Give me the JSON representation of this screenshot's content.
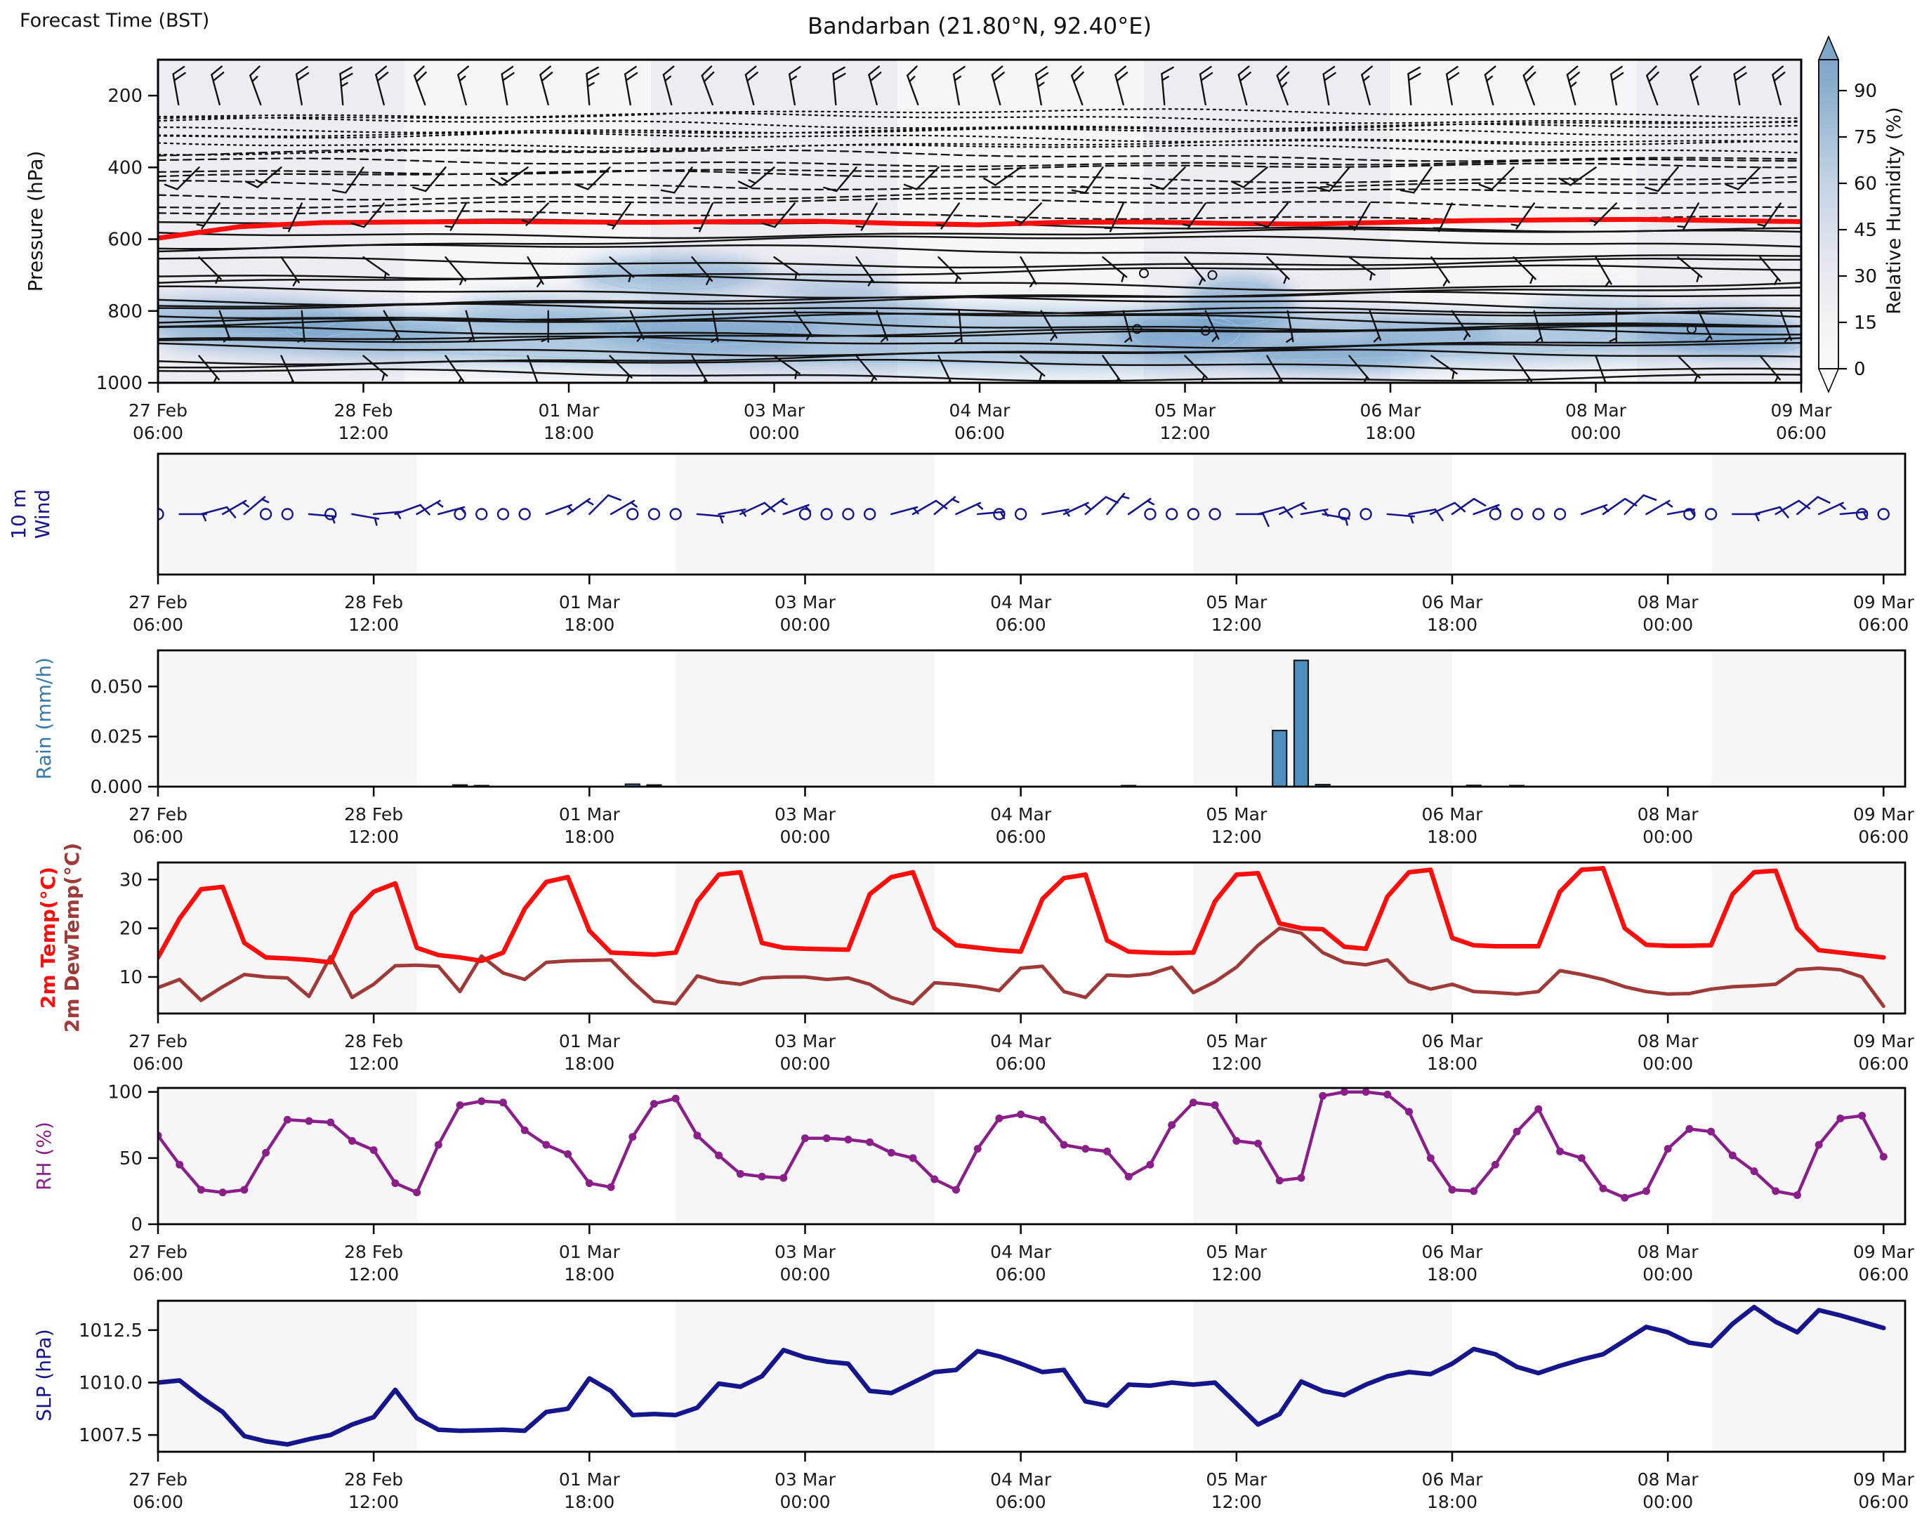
{
  "header": {
    "corner_label": "Forecast Time (BST)",
    "title": "Bandarban (21.80°N, 92.40°E)"
  },
  "x_axis": {
    "tick_hours": [
      0,
      30,
      60,
      90,
      120,
      150,
      180,
      210,
      240
    ],
    "tick_labels": [
      [
        "27 Feb",
        "06:00"
      ],
      [
        "28 Feb",
        "12:00"
      ],
      [
        "01 Mar",
        "18:00"
      ],
      [
        "03 Mar",
        "00:00"
      ],
      [
        "04 Mar",
        "06:00"
      ],
      [
        "05 Mar",
        "12:00"
      ],
      [
        "06 Mar",
        "18:00"
      ],
      [
        "08 Mar",
        "00:00"
      ],
      [
        "09 Mar",
        "06:00"
      ]
    ],
    "hours_total": 240
  },
  "colors": {
    "temp": "#fb0f0c",
    "dew": "#9e3a38",
    "rh": "#8a1f8a",
    "slp": "#16168c",
    "wind10m": "#16168c",
    "rain_bar": "#4e8fc0",
    "rain_bar_edge": "#1a1a1a",
    "rain_label": "#3779ab",
    "contour": "#151515",
    "freezing_line": "#fb0f0c",
    "day_band_gray": "#f6f6f6",
    "pressure_bg": "#edecf3",
    "humidity_blue": "#6094c3"
  },
  "chart_data": [
    {
      "id": "pressure_time_section",
      "type": "contour+barbs",
      "ylabel": "Pressure (hPa)",
      "yticks": [
        200,
        400,
        600,
        800,
        1000
      ],
      "ylim": [
        100,
        1000
      ],
      "colorbar": {
        "label": "Relative Humidity (%)",
        "ticks": [
          0,
          15,
          30,
          45,
          60,
          75,
          90
        ],
        "range": [
          0,
          100
        ]
      },
      "freezing_level_points": {
        "step_h": 12,
        "hpa": [
          597,
          565,
          554,
          552,
          551,
          552,
          553,
          551,
          550,
          556,
          560,
          553,
          552,
          556,
          558,
          553,
          548,
          546,
          545,
          548,
          551
        ]
      },
      "dashed_contours_hpa": [
        250,
        264,
        278,
        292,
        306,
        320,
        334,
        350,
        366,
        384,
        404,
        426,
        450,
        476,
        504,
        534
      ],
      "solid_contours_hpa": [
        562,
        584,
        608,
        634,
        662,
        692,
        722,
        748,
        766,
        782,
        796,
        810,
        824,
        838,
        852,
        868,
        886,
        906,
        928,
        952,
        978
      ],
      "humidity_blobs": [
        [
          12,
          820,
          18,
          60,
          0.5
        ],
        [
          30,
          850,
          14,
          50,
          0.45
        ],
        [
          55,
          800,
          12,
          45,
          0.4
        ],
        [
          75,
          700,
          14,
          55,
          0.55
        ],
        [
          80,
          850,
          16,
          60,
          0.5
        ],
        [
          98,
          730,
          10,
          40,
          0.35
        ],
        [
          103,
          800,
          12,
          45,
          0.4
        ],
        [
          120,
          880,
          120,
          85,
          0.45
        ],
        [
          150,
          860,
          10,
          70,
          0.5
        ],
        [
          158,
          780,
          8,
          80,
          0.55
        ],
        [
          172,
          930,
          14,
          40,
          0.5
        ],
        [
          186,
          860,
          10,
          40,
          0.35
        ],
        [
          210,
          800,
          10,
          50,
          0.3
        ],
        [
          228,
          850,
          12,
          60,
          0.5
        ],
        [
          232,
          890,
          10,
          40,
          0.5
        ]
      ],
      "calm_circles": [
        [
          144,
          695
        ],
        [
          154,
          700
        ],
        [
          143,
          850
        ],
        [
          153,
          855
        ],
        [
          224,
          850
        ]
      ],
      "barb_rows": [
        {
          "hpa": 225,
          "start_h": 3,
          "step_h": 6,
          "speeds": [
            20,
            20,
            15,
            20,
            25,
            20,
            20,
            15,
            20,
            20,
            25,
            20,
            15,
            20,
            20,
            15,
            20,
            20,
            15,
            15,
            20,
            25,
            20,
            20,
            15,
            20,
            20,
            25,
            20,
            15,
            20,
            20,
            15,
            20,
            25,
            20,
            20,
            15,
            20,
            20
          ],
          "dirs": [
            350,
            345,
            340,
            350,
            355,
            345,
            340,
            345,
            350,
            345,
            355,
            350,
            345,
            340,
            345,
            350,
            355,
            345,
            340,
            350,
            345,
            350,
            340,
            345,
            355,
            350,
            345,
            340,
            350,
            345,
            355,
            350,
            345,
            340,
            345,
            350,
            340,
            345,
            350,
            345
          ]
        },
        {
          "hpa": 400,
          "start_h": 6,
          "step_h": 12,
          "speeds": [
            10,
            15,
            10,
            10,
            15,
            10,
            10,
            15,
            10,
            10,
            10,
            15,
            10,
            10,
            15,
            10,
            10,
            15,
            10,
            10
          ],
          "dirs": [
            225,
            230,
            215,
            220,
            235,
            225,
            215,
            230,
            220,
            225,
            235,
            215,
            225,
            230,
            220,
            215,
            225,
            235,
            220,
            225
          ]
        },
        {
          "hpa": 500,
          "start_h": 9,
          "step_h": 12,
          "speeds": [
            7,
            5,
            8,
            5,
            7,
            5,
            5,
            8,
            5,
            7,
            5,
            5,
            7,
            8,
            5,
            5,
            7,
            5,
            5,
            7
          ],
          "dirs": [
            215,
            205,
            220,
            210,
            225,
            215,
            205,
            220,
            210,
            215,
            225,
            205,
            215,
            220,
            210,
            205,
            215,
            225,
            210,
            215
          ]
        },
        {
          "hpa": 650,
          "start_h": 6,
          "step_h": 12,
          "speeds": [
            5,
            6,
            5,
            7,
            5,
            5,
            6,
            5,
            5,
            7,
            5,
            6,
            5,
            5,
            6,
            5,
            7,
            5,
            6,
            5
          ],
          "dirs": [
            135,
            145,
            125,
            140,
            150,
            130,
            140,
            125,
            145,
            135,
            150,
            130,
            140,
            135,
            125,
            145,
            135,
            150,
            130,
            140
          ]
        },
        {
          "hpa": 800,
          "start_h": 9,
          "step_h": 12,
          "speeds": [
            5,
            4,
            5,
            5,
            4,
            5,
            5,
            4,
            5,
            5,
            4,
            5,
            5,
            4,
            5,
            5,
            4,
            5,
            4,
            5
          ],
          "dirs": [
            160,
            175,
            150,
            165,
            180,
            155,
            170,
            145,
            160,
            175,
            150,
            165,
            155,
            170,
            160,
            145,
            165,
            180,
            155,
            160
          ]
        },
        {
          "hpa": 925,
          "start_h": 6,
          "step_h": 12,
          "speeds": [
            6,
            5,
            7,
            5,
            6,
            5,
            7,
            6,
            5,
            7,
            5,
            6,
            7,
            5,
            6,
            5,
            7,
            6,
            5,
            6
          ],
          "dirs": [
            140,
            155,
            130,
            145,
            160,
            135,
            150,
            125,
            140,
            155,
            130,
            145,
            135,
            150,
            140,
            125,
            145,
            160,
            135,
            140
          ]
        }
      ]
    },
    {
      "id": "wind_10m",
      "type": "barbs",
      "ylabel_lines": [
        "10 m",
        "Wind"
      ],
      "step_h": 3,
      "speeds_kt": [
        0,
        3,
        8,
        5,
        5,
        0,
        0,
        4,
        0,
        5,
        7,
        8,
        6,
        5,
        0,
        0,
        0,
        0,
        5,
        7,
        8,
        6,
        0,
        0,
        0,
        3,
        6,
        8,
        7,
        4,
        0,
        0,
        0,
        0,
        5,
        8,
        6,
        4,
        3,
        0,
        0,
        3,
        7,
        9,
        6,
        4,
        0,
        0,
        0,
        0,
        8,
        10,
        7,
        5,
        3,
        0,
        0,
        5,
        10,
        12,
        8,
        5,
        0,
        0,
        0,
        0,
        7,
        10,
        8,
        5,
        3,
        0,
        0,
        5,
        9,
        12,
        10,
        6,
        3,
        0,
        0
      ],
      "dirs_deg": [
        100,
        90,
        75,
        60,
        50,
        65,
        85,
        95,
        110,
        100,
        85,
        70,
        60,
        75,
        95,
        105,
        95,
        85,
        70,
        55,
        45,
        60,
        80,
        90,
        105,
        95,
        80,
        65,
        55,
        70,
        90,
        100,
        100,
        90,
        75,
        60,
        50,
        65,
        85,
        95,
        90,
        80,
        65,
        50,
        40,
        55,
        75,
        85,
        115,
        105,
        90,
        75,
        65,
        80,
        100,
        110,
        105,
        95,
        80,
        65,
        55,
        70,
        90,
        100,
        95,
        85,
        70,
        55,
        45,
        60,
        80,
        90,
        100,
        90,
        75,
        60,
        50,
        65,
        85,
        95,
        90
      ]
    },
    {
      "id": "rain",
      "type": "bar",
      "ylabel": "Rain (mm/h)",
      "ytick_labels": [
        "0.000",
        "0.025",
        "0.050"
      ],
      "ytick_values": [
        0,
        0.025,
        0.05
      ],
      "ylim": [
        0,
        0.068
      ],
      "step_h": 3,
      "values_mm_h": [
        0,
        0,
        0,
        0,
        0,
        0,
        0,
        0,
        0,
        0,
        0,
        0,
        0,
        0,
        0.0008,
        0.0005,
        0,
        0,
        0,
        0,
        0,
        0,
        0.0012,
        0.0008,
        0,
        0,
        0,
        0,
        0,
        0,
        0,
        0,
        0,
        0,
        0,
        0,
        0,
        0,
        0,
        0,
        0,
        0,
        0,
        0,
        0,
        0.0005,
        0,
        0,
        0,
        0,
        0,
        0,
        0.028,
        0.063,
        0.001,
        0,
        0,
        0,
        0,
        0,
        0,
        0.0006,
        0,
        0.0005,
        0,
        0,
        0,
        0,
        0,
        0,
        0,
        0,
        0,
        0,
        0,
        0,
        0,
        0,
        0,
        0,
        0
      ]
    },
    {
      "id": "temp_2m",
      "type": "line",
      "ylabel_lines": [
        {
          "text": "2m Temp(°C)",
          "color": "#fb0f0c"
        },
        {
          "text": "2m DewTemp(°C)",
          "color": "#9e3a38"
        }
      ],
      "yticks": [
        10,
        20,
        30
      ],
      "ylim": [
        2.5,
        33.5
      ],
      "step_h": 3,
      "series": [
        {
          "name": "2m Temp",
          "color": "#fb0f0c",
          "values": [
            14,
            22,
            28,
            28.5,
            17,
            14,
            13.8,
            13.5,
            13,
            23,
            27.5,
            29.2,
            16,
            14.5,
            14,
            13.3,
            15,
            24,
            29.5,
            30.5,
            19.5,
            15,
            14.8,
            14.6,
            15,
            25.5,
            31,
            31.5,
            17,
            16,
            15.8,
            15.7,
            15.6,
            27,
            30.5,
            31.5,
            20,
            16.5,
            16,
            15.5,
            15.2,
            26,
            30.3,
            31,
            17.5,
            15.2,
            15,
            14.9,
            15,
            25.5,
            31,
            31.3,
            21,
            20,
            19.8,
            16.2,
            15.8,
            26.5,
            31.5,
            32,
            18,
            16.5,
            16.3,
            16.3,
            16.3,
            27.5,
            32,
            32.3,
            20,
            16.6,
            16.4,
            16.4,
            16.5,
            27,
            31.5,
            31.8,
            20,
            15.5,
            15,
            14.5,
            14
          ]
        },
        {
          "name": "2m DewTemp",
          "color": "#9e3a38",
          "values": [
            7.8,
            9.5,
            5.2,
            8,
            10.5,
            10,
            9.8,
            6,
            14.2,
            5.8,
            8.5,
            12.3,
            12.4,
            12.2,
            7,
            14.3,
            10.8,
            9.5,
            13,
            13.3,
            13.4,
            13.5,
            9,
            5,
            4.5,
            10.2,
            9,
            8.5,
            9.8,
            10,
            10,
            9.5,
            9.8,
            8.5,
            5.8,
            4.5,
            8.8,
            8.5,
            8,
            7.2,
            11.8,
            12.2,
            7,
            5.8,
            10.4,
            10.2,
            10.6,
            12,
            6.8,
            9,
            12,
            16.5,
            20,
            19,
            15,
            13,
            12.5,
            13.5,
            9,
            7.5,
            8.5,
            7,
            6.8,
            6.5,
            7,
            11.3,
            10.5,
            9.5,
            8,
            7,
            6.5,
            6.6,
            7.5,
            8,
            8.2,
            8.5,
            11.5,
            11.8,
            11.5,
            10,
            4
          ]
        }
      ]
    },
    {
      "id": "rh",
      "type": "line",
      "ylabel": "RH (%)",
      "yticks": [
        0,
        50,
        100
      ],
      "ylim": [
        0,
        103
      ],
      "step_h": 3,
      "marker": "circle",
      "values_pct": [
        67,
        45,
        26,
        24,
        26,
        54,
        79,
        78,
        77,
        63,
        56,
        31,
        24,
        60,
        90,
        93,
        92,
        71,
        60,
        53,
        31,
        28,
        66,
        91,
        95,
        67,
        52,
        38,
        36,
        35,
        65,
        65,
        64,
        62,
        54,
        50,
        34,
        26,
        57,
        80,
        83,
        79,
        60,
        57,
        55,
        36,
        45,
        75,
        92,
        90,
        63,
        61,
        33,
        35,
        97,
        100,
        100,
        98,
        85,
        50,
        26,
        25,
        45,
        70,
        87,
        55,
        50,
        27,
        20,
        25,
        57,
        72,
        70,
        52,
        40,
        25,
        22,
        60,
        80,
        82,
        51
      ]
    },
    {
      "id": "slp",
      "type": "line",
      "ylabel": "SLP (hPa)",
      "ytick_labels": [
        "1007.5",
        "1010.0",
        "1012.5"
      ],
      "ytick_values": [
        1007.5,
        1010.0,
        1012.5
      ],
      "ylim": [
        1006.7,
        1013.9
      ],
      "step_h": 3,
      "values_hpa": [
        1010,
        1010.1,
        1009.3,
        1008.6,
        1007.45,
        1007.2,
        1007.05,
        1007.3,
        1007.5,
        1008,
        1008.35,
        1009.65,
        1008.3,
        1007.75,
        1007.7,
        1007.72,
        1007.75,
        1007.7,
        1008.6,
        1008.75,
        1010.2,
        1009.6,
        1008.45,
        1008.5,
        1008.45,
        1008.8,
        1009.95,
        1009.8,
        1010.3,
        1011.55,
        1011.2,
        1011,
        1010.9,
        1009.6,
        1009.5,
        1010,
        1010.5,
        1010.6,
        1011.5,
        1011.25,
        1010.9,
        1010.5,
        1010.6,
        1009.1,
        1008.9,
        1009.9,
        1009.85,
        1010,
        1009.9,
        1010,
        1009,
        1008,
        1008.5,
        1010.05,
        1009.6,
        1009.4,
        1009.9,
        1010.3,
        1010.5,
        1010.4,
        1010.9,
        1011.6,
        1011.35,
        1010.75,
        1010.45,
        1010.8,
        1011.1,
        1011.35,
        1012,
        1012.65,
        1012.4,
        1011.9,
        1011.75,
        1012.8,
        1013.6,
        1012.9,
        1012.4,
        1013.45,
        1013.2,
        1012.9,
        1012.6
      ]
    }
  ]
}
